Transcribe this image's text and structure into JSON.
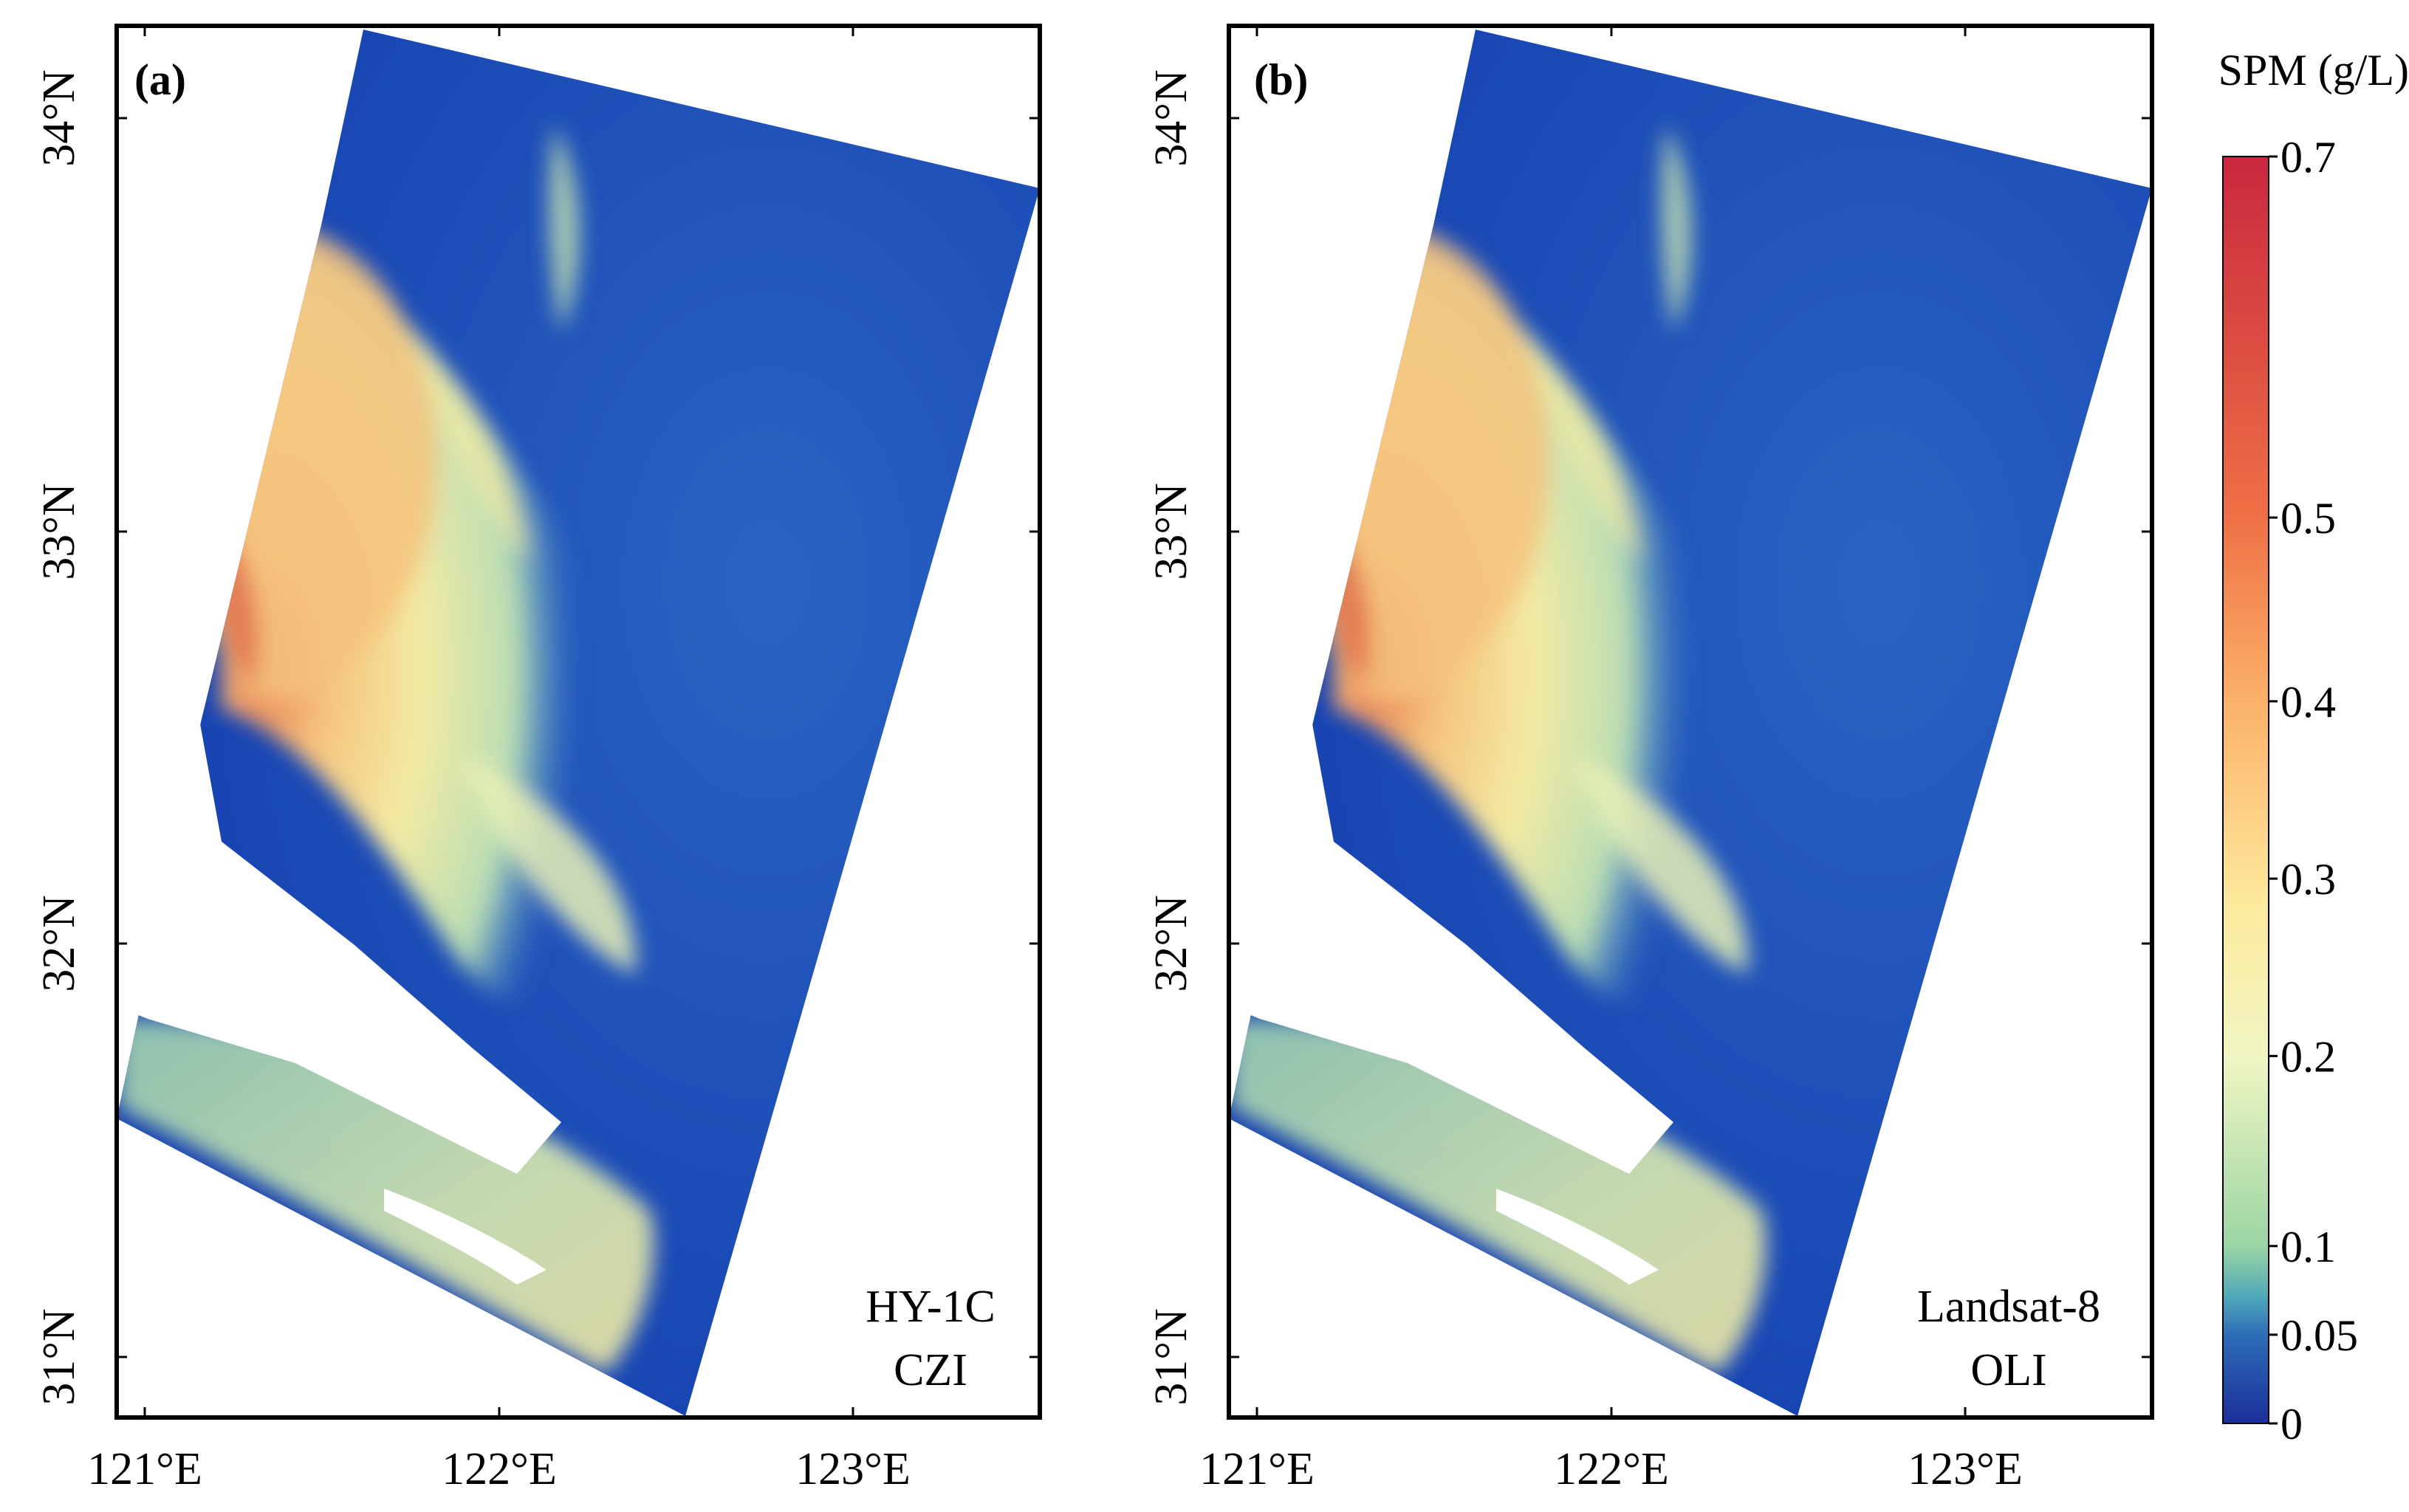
{
  "figure": {
    "colorbar": {
      "title": "SPM (g/L)",
      "ticks": [
        {
          "value": 0.7,
          "label": "0.7"
        },
        {
          "value": 0.5,
          "label": "0.5"
        },
        {
          "value": 0.4,
          "label": "0.4"
        },
        {
          "value": 0.3,
          "label": "0.3"
        },
        {
          "value": 0.2,
          "label": "0.2"
        },
        {
          "value": 0.1,
          "label": "0.1"
        },
        {
          "value": 0.05,
          "label": "0.05"
        },
        {
          "value": 0,
          "label": "0"
        }
      ],
      "colors": {
        "red": "#c9283f",
        "orange": "#ee6e45",
        "peach": "#fbb169",
        "yellow": "#fde99c",
        "pale": "#f1f6c3",
        "green": "#9bd5a4",
        "teal": "#4fa9b8",
        "blue": "#2e6db7",
        "navy": "#1b2f9a"
      }
    },
    "panels": [
      {
        "label": "(a)",
        "sensor_line1": "HY-1C",
        "sensor_line2": "CZI",
        "lat_labels": [
          "34°N",
          "33°N",
          "32°N",
          "31°N"
        ],
        "lon_labels": [
          "121°E",
          "122°E",
          "123°E"
        ]
      },
      {
        "label": "(b)",
        "sensor_line1": "Landsat-8",
        "sensor_line2": "OLI",
        "lat_labels": [
          "34°N",
          "33°N",
          "32°N",
          "31°N"
        ],
        "lon_labels": [
          "121°E",
          "122°E",
          "123°E"
        ]
      }
    ],
    "map_colors": {
      "ocean": "#1540b0",
      "ocean_mid": "#1e5cc0",
      "plume_high": "#f3b36e",
      "plume_peak": "#e06a4a",
      "plume_mid": "#f3eaa3",
      "plume_low": "#c6e4b0",
      "estuary": "#8ccaa8"
    }
  }
}
